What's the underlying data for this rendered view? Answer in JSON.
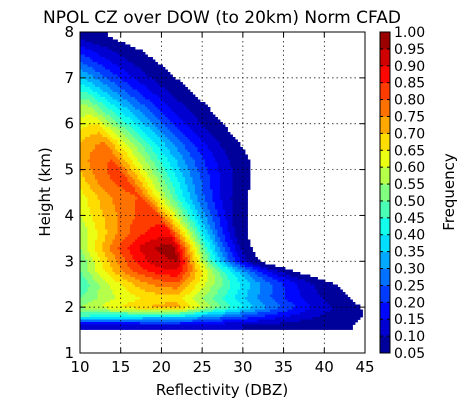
{
  "chart_data": {
    "type": "heatmap",
    "title": "NPOL CZ over DOW (to 20km) Norm CFAD",
    "xlabel": "Reflectivity (DBZ)",
    "ylabel": "Height (km)",
    "xlim": [
      10,
      45
    ],
    "ylim": [
      1,
      8
    ],
    "xticks": [
      "10",
      "15",
      "20",
      "25",
      "30",
      "35",
      "40",
      "45"
    ],
    "yticks": [
      "1",
      "2",
      "3",
      "4",
      "5",
      "6",
      "7",
      "8"
    ],
    "grid": true,
    "colormap": "jet",
    "colorbar": {
      "label": "Frequency",
      "min": 0.05,
      "max": 1.0,
      "ticks": [
        "0.05",
        "0.10",
        "0.15",
        "0.20",
        "0.25",
        "0.30",
        "0.35",
        "0.40",
        "0.45",
        "0.50",
        "0.55",
        "0.60",
        "0.65",
        "0.70",
        "0.75",
        "0.80",
        "0.85",
        "0.90",
        "0.95",
        "1.00"
      ]
    },
    "rows": [
      {
        "height": 1.6,
        "left": 10.0,
        "right": 43.5,
        "peak_x": 22,
        "peak": 0.14,
        "left_value": 0.1
      },
      {
        "height": 1.8,
        "left": 10.0,
        "right": 44.8,
        "peak_x": 22,
        "peak": 0.4,
        "left_value": 0.45
      },
      {
        "height": 2.0,
        "left": 10.0,
        "right": 44.5,
        "peak_x": 22,
        "peak": 0.72,
        "left_value": 0.55
      },
      {
        "height": 2.2,
        "left": 10.0,
        "right": 43.0,
        "peak_x": 22,
        "peak": 0.68,
        "left_value": 0.5
      },
      {
        "height": 2.5,
        "left": 10.0,
        "right": 41.5,
        "peak_x": 22,
        "peak": 0.78,
        "left_value": 0.45
      },
      {
        "height": 2.8,
        "left": 10.0,
        "right": 36.0,
        "peak_x": 22,
        "peak": 0.9,
        "left_value": 0.5
      },
      {
        "height": 3.0,
        "left": 10.0,
        "right": 32.0,
        "peak_x": 22,
        "peak": 0.95,
        "left_value": 0.5
      },
      {
        "height": 3.3,
        "left": 10.0,
        "right": 31.0,
        "peak_x": 21.5,
        "peak": 0.97,
        "left_value": 0.55
      },
      {
        "height": 3.6,
        "left": 10.0,
        "right": 30.5,
        "peak_x": 21,
        "peak": 0.88,
        "left_value": 0.55
      },
      {
        "height": 4.0,
        "left": 10.0,
        "right": 30.5,
        "peak_x": 19.5,
        "peak": 0.82,
        "left_value": 0.6
      },
      {
        "height": 4.4,
        "left": 10.0,
        "right": 30.5,
        "peak_x": 17.5,
        "peak": 0.8,
        "left_value": 0.62
      },
      {
        "height": 4.8,
        "left": 10.0,
        "right": 31.0,
        "peak_x": 15.5,
        "peak": 0.82,
        "left_value": 0.68
      },
      {
        "height": 5.2,
        "left": 10.0,
        "right": 30.8,
        "peak_x": 14,
        "peak": 0.8,
        "left_value": 0.72
      },
      {
        "height": 5.6,
        "left": 10.0,
        "right": 29.5,
        "peak_x": 13,
        "peak": 0.75,
        "left_value": 0.7
      },
      {
        "height": 6.0,
        "left": 10.0,
        "right": 27.5,
        "peak_x": 12,
        "peak": 0.65,
        "left_value": 0.62
      },
      {
        "height": 6.4,
        "left": 10.0,
        "right": 25.5,
        "peak_x": 11,
        "peak": 0.55,
        "left_value": 0.55
      },
      {
        "height": 6.8,
        "left": 10.0,
        "right": 23.0,
        "peak_x": 10.5,
        "peak": 0.42,
        "left_value": 0.42
      },
      {
        "height": 7.2,
        "left": 10.0,
        "right": 20.5,
        "peak_x": 10,
        "peak": 0.3,
        "left_value": 0.3
      },
      {
        "height": 7.6,
        "left": 10.0,
        "right": 17.5,
        "peak_x": 10,
        "peak": 0.18,
        "left_value": 0.18
      },
      {
        "height": 7.9,
        "left": 10.0,
        "right": 13.5,
        "peak_x": 10,
        "peak": 0.08,
        "left_value": 0.08
      }
    ]
  }
}
